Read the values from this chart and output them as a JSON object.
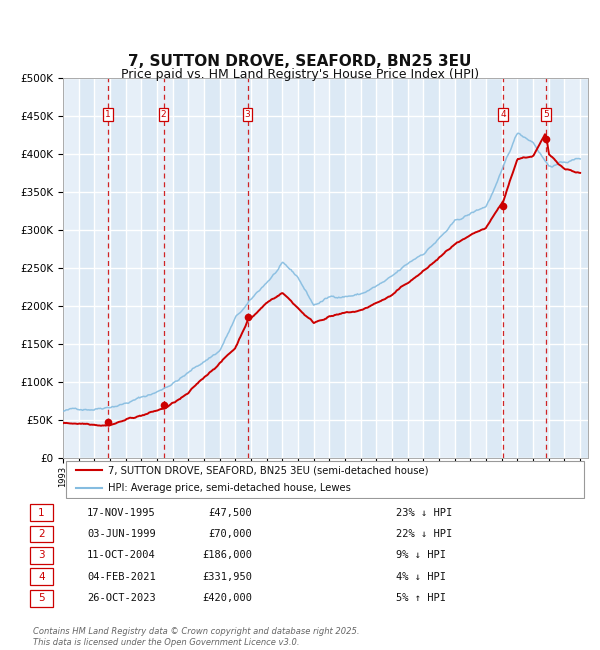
{
  "title": "7, SUTTON DROVE, SEAFORD, BN25 3EU",
  "subtitle": "Price paid vs. HM Land Registry's House Price Index (HPI)",
  "ylim": [
    0,
    500000
  ],
  "yticks": [
    0,
    50000,
    100000,
    150000,
    200000,
    250000,
    300000,
    350000,
    400000,
    450000,
    500000
  ],
  "xlim_start": 1993.0,
  "xlim_end": 2026.5,
  "background_color": "#dce9f5",
  "grid_color": "#ffffff",
  "hpi_line_color": "#85bce0",
  "price_line_color": "#cc0000",
  "vline_color": "#cc0000",
  "transaction_dates": [
    1995.876,
    1999.42,
    2004.78,
    2021.09,
    2023.82
  ],
  "transaction_prices": [
    47500,
    70000,
    186000,
    331950,
    420000
  ],
  "transaction_labels": [
    "1",
    "2",
    "3",
    "4",
    "5"
  ],
  "legend_line_label": "7, SUTTON DROVE, SEAFORD, BN25 3EU (semi-detached house)",
  "legend_hpi_label": "HPI: Average price, semi-detached house, Lewes",
  "table_rows": [
    [
      "1",
      "17-NOV-1995",
      "£47,500",
      "23% ↓ HPI"
    ],
    [
      "2",
      "03-JUN-1999",
      "£70,000",
      "22% ↓ HPI"
    ],
    [
      "3",
      "11-OCT-2004",
      "£186,000",
      "9% ↓ HPI"
    ],
    [
      "4",
      "04-FEB-2021",
      "£331,950",
      "4% ↓ HPI"
    ],
    [
      "5",
      "26-OCT-2023",
      "£420,000",
      "5% ↑ HPI"
    ]
  ],
  "footnote": "Contains HM Land Registry data © Crown copyright and database right 2025.\nThis data is licensed under the Open Government Licence v3.0.",
  "title_fontsize": 11,
  "subtitle_fontsize": 9
}
